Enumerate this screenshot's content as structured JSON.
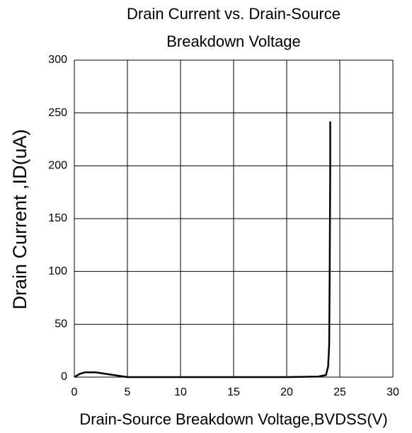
{
  "chart_data": {
    "type": "line",
    "title": [
      "Drain Current vs. Drain-Source",
      "Breakdown Voltage"
    ],
    "x_label": "Drain-Source Breakdown Voltage,BVDSS(V)",
    "y_label": "Drain Current ,ID(uA)",
    "xlim": [
      0,
      30
    ],
    "xticks": [
      0,
      5,
      10,
      15,
      20,
      25,
      30
    ],
    "ylim": [
      0,
      300
    ],
    "yticks": [
      0,
      50,
      100,
      150,
      200,
      250,
      300
    ],
    "grid": true,
    "series": [
      {
        "color": "#000000",
        "x": [
          0,
          0.5,
          1,
          2,
          3,
          4,
          5,
          10,
          15,
          20,
          23,
          23.7,
          23.9,
          24,
          24.05,
          24.1,
          24.1
        ],
        "values": [
          0,
          3,
          4.5,
          4.5,
          3,
          1.5,
          0,
          0,
          0,
          0,
          0.5,
          2,
          10,
          30,
          100,
          200,
          242
        ]
      }
    ]
  }
}
